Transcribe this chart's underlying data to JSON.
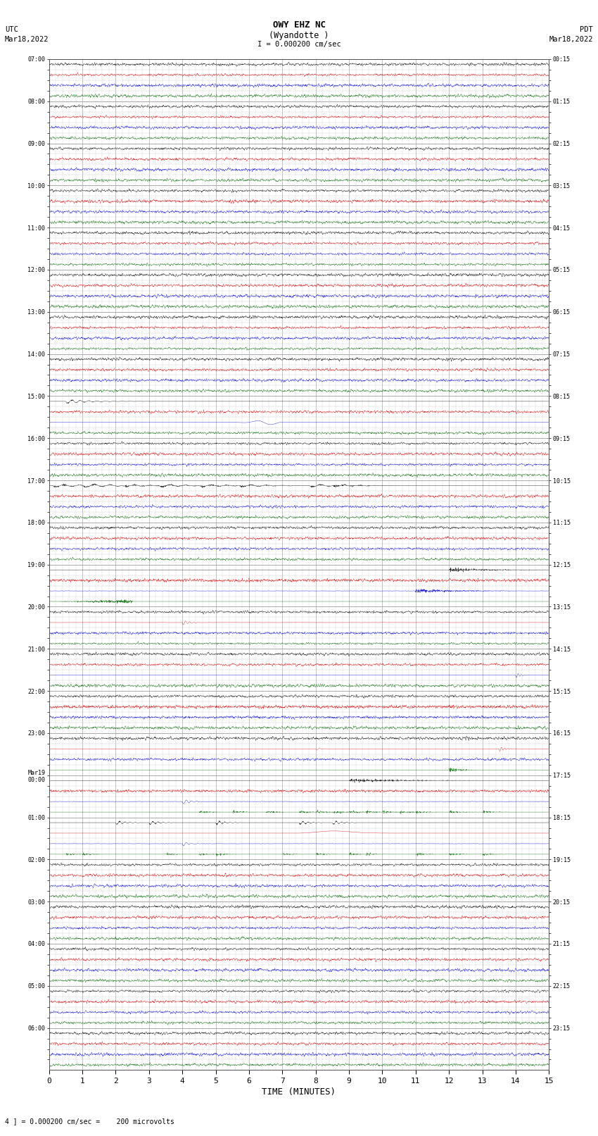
{
  "title_line1": "OWY EHZ NC",
  "title_line2": "(Wyandotte )",
  "title_scale": "I = 0.000200 cm/sec",
  "left_header": "UTC\nMar18,2022",
  "right_header": "PDT\nMar18,2022",
  "xlabel": "TIME (MINUTES)",
  "footer": "4 ] = 0.000200 cm/sec =    200 microvolts",
  "x_min": 0,
  "x_max": 15,
  "x_ticks": [
    0,
    1,
    2,
    3,
    4,
    5,
    6,
    7,
    8,
    9,
    10,
    11,
    12,
    13,
    14,
    15
  ],
  "background_color": "#ffffff",
  "grid_color_major": "#aaaaaa",
  "grid_color_minor": "#cccccc",
  "row_labels_left": [
    "07:00",
    "",
    "",
    "",
    "08:00",
    "",
    "",
    "",
    "09:00",
    "",
    "",
    "",
    "10:00",
    "",
    "",
    "",
    "11:00",
    "",
    "",
    "",
    "12:00",
    "",
    "",
    "",
    "13:00",
    "",
    "",
    "",
    "14:00",
    "",
    "",
    "",
    "15:00",
    "",
    "",
    "",
    "16:00",
    "",
    "",
    "",
    "17:00",
    "",
    "",
    "",
    "18:00",
    "",
    "",
    "",
    "19:00",
    "",
    "",
    "",
    "20:00",
    "",
    "",
    "",
    "21:00",
    "",
    "",
    "",
    "22:00",
    "",
    "",
    "",
    "23:00",
    "",
    "",
    "",
    "Mar19\n00:00",
    "",
    "",
    "",
    "01:00",
    "",
    "",
    "",
    "02:00",
    "",
    "",
    "",
    "03:00",
    "",
    "",
    "",
    "04:00",
    "",
    "",
    "",
    "05:00",
    "",
    "",
    "",
    "06:00",
    "",
    "",
    ""
  ],
  "row_labels_right": [
    "00:15",
    "",
    "",
    "",
    "01:15",
    "",
    "",
    "",
    "02:15",
    "",
    "",
    "",
    "03:15",
    "",
    "",
    "",
    "04:15",
    "",
    "",
    "",
    "05:15",
    "",
    "",
    "",
    "06:15",
    "",
    "",
    "",
    "07:15",
    "",
    "",
    "",
    "08:15",
    "",
    "",
    "",
    "09:15",
    "",
    "",
    "",
    "10:15",
    "",
    "",
    "",
    "11:15",
    "",
    "",
    "",
    "12:15",
    "",
    "",
    "",
    "13:15",
    "",
    "",
    "",
    "14:15",
    "",
    "",
    "",
    "15:15",
    "",
    "",
    "",
    "16:15",
    "",
    "",
    "",
    "17:15",
    "",
    "",
    "",
    "18:15",
    "",
    "",
    "",
    "19:15",
    "",
    "",
    "",
    "20:15",
    "",
    "",
    "",
    "21:15",
    "",
    "",
    "",
    "22:15",
    "",
    "",
    "",
    "23:15",
    "",
    "",
    ""
  ],
  "trace_colors": [
    "#000000",
    "#cc0000",
    "#0000cc",
    "#006600"
  ],
  "num_hours": 24,
  "traces_per_hour": 4
}
